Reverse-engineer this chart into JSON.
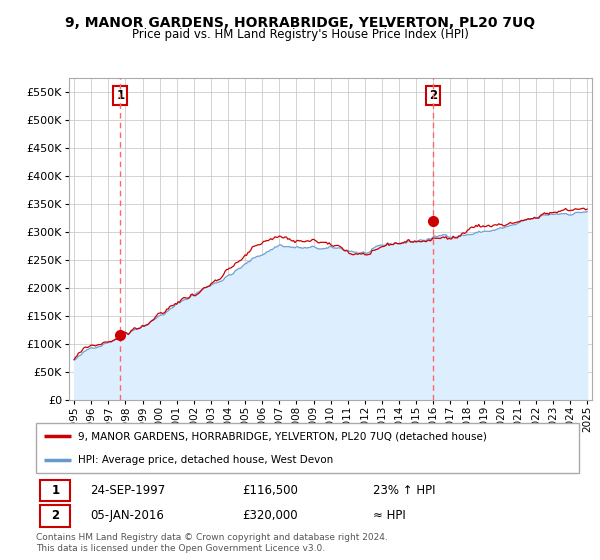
{
  "title": "9, MANOR GARDENS, HORRABRIDGE, YELVERTON, PL20 7UQ",
  "subtitle": "Price paid vs. HM Land Registry's House Price Index (HPI)",
  "ylim": [
    0,
    575000
  ],
  "yticks": [
    0,
    50000,
    100000,
    150000,
    200000,
    250000,
    300000,
    350000,
    400000,
    450000,
    500000,
    550000
  ],
  "ytick_labels": [
    "£0",
    "£50K",
    "£100K",
    "£150K",
    "£200K",
    "£250K",
    "£300K",
    "£350K",
    "£400K",
    "£450K",
    "£500K",
    "£550K"
  ],
  "sale1": {
    "date": "24-SEP-1997",
    "price": 116500,
    "label": "1",
    "hpi_relation": "23% ↑ HPI"
  },
  "sale2": {
    "date": "05-JAN-2016",
    "price": 320000,
    "label": "2",
    "hpi_relation": "≈ HPI"
  },
  "legend_line1": "9, MANOR GARDENS, HORRABRIDGE, YELVERTON, PL20 7UQ (detached house)",
  "legend_line2": "HPI: Average price, detached house, West Devon",
  "footer": "Contains HM Land Registry data © Crown copyright and database right 2024.\nThis data is licensed under the Open Government Licence v3.0.",
  "line_color_sale": "#cc0000",
  "line_color_hpi": "#6699cc",
  "fill_color_hpi": "#ddeeff",
  "vline_color": "#ff6666",
  "dot_color": "#cc0000",
  "background_color": "#ffffff",
  "grid_color": "#cccccc",
  "xstart": 1995,
  "xend": 2025
}
